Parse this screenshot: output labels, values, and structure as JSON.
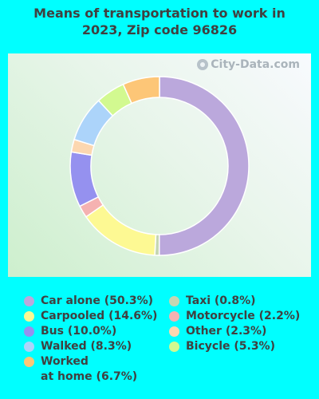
{
  "title_line1": "Means of transportation to work in",
  "title_line2": "2023, Zip code 96826",
  "watermark": "City-Data.com",
  "chart_data": {
    "type": "pie",
    "donut": true,
    "title": "Means of transportation to work in 2023, Zip code 96826",
    "legend_position": "bottom",
    "slices": [
      {
        "label": "Car alone",
        "value": 50.3,
        "color": "#bba8dc",
        "legend": "Car alone (50.3%)"
      },
      {
        "label": "Taxi",
        "value": 0.8,
        "color": "#c5d6b2",
        "legend": "Taxi (0.8%)"
      },
      {
        "label": "Carpooled",
        "value": 14.6,
        "color": "#fdf993",
        "legend": "Carpooled (14.6%)"
      },
      {
        "label": "Motorcycle",
        "value": 2.2,
        "color": "#f5b2b1",
        "legend": "Motorcycle (2.2%)"
      },
      {
        "label": "Bus",
        "value": 10.0,
        "color": "#9591ef",
        "legend": "Bus (10.0%)"
      },
      {
        "label": "Other",
        "value": 2.3,
        "color": "#fcd7b0",
        "legend": "Other (2.3%)"
      },
      {
        "label": "Walked",
        "value": 8.3,
        "color": "#acd4fa",
        "legend": "Walked (8.3%)"
      },
      {
        "label": "Bicycle",
        "value": 5.3,
        "color": "#d2f990",
        "legend": "Bicycle (5.3%)"
      },
      {
        "label": "Worked at home",
        "value": 6.7,
        "color": "#fdc677",
        "legend": "Worked at home (6.7%)"
      }
    ]
  }
}
